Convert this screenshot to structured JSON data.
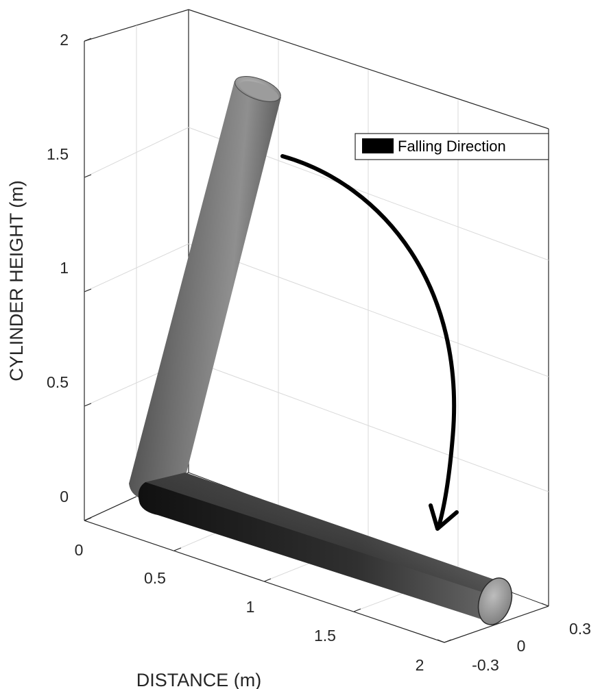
{
  "chart_data": {
    "type": "3d-surface",
    "title": "",
    "xlabel": "DISTANCE (m)",
    "ylabel": "",
    "zlabel": "CYLINDER HEIGHT (m)",
    "x_ticks": [
      "0",
      "0.5",
      "1",
      "1.5",
      "2"
    ],
    "y_ticks": [
      "-0.3",
      "0",
      "0.3"
    ],
    "z_ticks": [
      "0",
      "0.5",
      "1",
      "1.5",
      "2"
    ],
    "xlim": [
      0,
      2
    ],
    "ylim": [
      -0.3,
      0.3
    ],
    "zlim": [
      0,
      2
    ],
    "grid": true,
    "legend": {
      "position": "top-right",
      "entries": [
        "Falling Direction"
      ]
    },
    "objects": [
      {
        "name": "standing cylinder (tilted)",
        "axis_start": [
          0.1,
          0,
          0.05
        ],
        "axis_end": [
          0.4,
          0,
          1.8
        ],
        "radius": 0.06
      },
      {
        "name": "fallen cylinder",
        "axis_start": [
          0.1,
          0,
          0
        ],
        "axis_end": [
          1.9,
          0,
          0
        ],
        "radius": 0.06
      }
    ],
    "annotations": [
      {
        "type": "curved-arrow",
        "meaning": "falling direction"
      }
    ]
  }
}
